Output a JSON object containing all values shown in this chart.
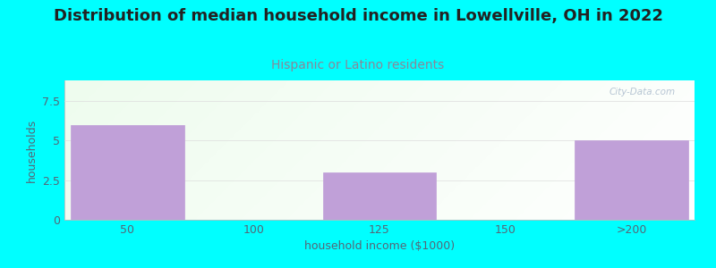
{
  "title": "Distribution of median household income in Lowellville, OH in 2022",
  "subtitle": "Hispanic or Latino residents",
  "xlabel": "household income ($1000)",
  "ylabel": "households",
  "categories": [
    "50",
    "100",
    "125",
    "150",
    ">200"
  ],
  "values": [
    6,
    0,
    3,
    0,
    5
  ],
  "bar_color": "#c0a0d8",
  "bar_edge_color": "#c0a0d8",
  "background_color": "#00FFFF",
  "title_color": "#222222",
  "subtitle_color": "#888899",
  "xlabel_color": "#556677",
  "ylabel_color": "#556677",
  "tick_color": "#556677",
  "watermark_color": "#aabbcc",
  "ylim": [
    0,
    8.8
  ],
  "yticks": [
    0,
    2.5,
    5,
    7.5
  ],
  "watermark": "City-Data.com",
  "title_fontsize": 13,
  "subtitle_fontsize": 10,
  "label_fontsize": 9,
  "tick_fontsize": 9
}
